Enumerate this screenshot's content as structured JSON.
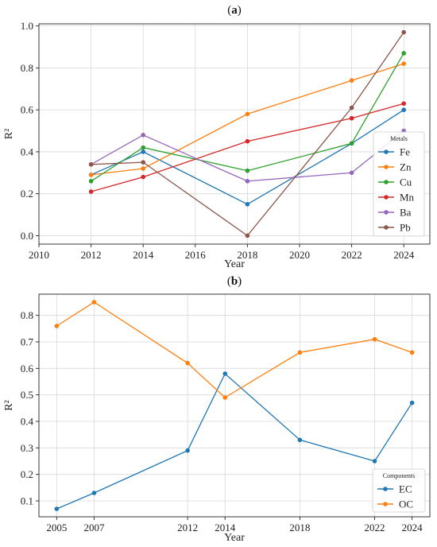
{
  "chart_data": [
    {
      "type": "line",
      "panel_label": "a",
      "xlabel": "Year",
      "ylabel": "R²",
      "xlim": [
        2010,
        2025
      ],
      "ylim": [
        -0.04,
        1.01
      ],
      "xticks": [
        2010,
        2012,
        2014,
        2016,
        2018,
        2020,
        2022,
        2024
      ],
      "yticks": [
        0.0,
        0.2,
        0.4,
        0.6,
        0.8,
        1.0
      ],
      "ytick_labels": [
        "0.0",
        "0.2",
        "0.4",
        "0.6",
        "0.8",
        "1.0"
      ],
      "grid": true,
      "legend": {
        "title": "Metals",
        "placement": "lower-right"
      },
      "x": [
        2012,
        2014,
        2018,
        2022,
        2024
      ],
      "series": [
        {
          "name": "Fe",
          "color": "#1f77b4",
          "values": [
            0.29,
            0.4,
            0.15,
            0.44,
            0.6
          ]
        },
        {
          "name": "Zn",
          "color": "#ff7f0e",
          "values": [
            0.29,
            0.32,
            0.58,
            0.74,
            0.82
          ]
        },
        {
          "name": "Cu",
          "color": "#2ca02c",
          "values": [
            0.26,
            0.42,
            0.31,
            0.44,
            0.87
          ]
        },
        {
          "name": "Mn",
          "color": "#d62728",
          "values": [
            0.21,
            0.28,
            0.45,
            0.56,
            0.63
          ]
        },
        {
          "name": "Ba",
          "color": "#9467bd",
          "values": [
            0.34,
            0.48,
            0.26,
            0.3,
            0.5
          ]
        },
        {
          "name": "Pb",
          "color": "#8c564b",
          "values": [
            0.34,
            0.35,
            0.0,
            0.61,
            0.97
          ]
        }
      ]
    },
    {
      "type": "line",
      "panel_label": "b",
      "xlabel": "Year",
      "ylabel": "R²",
      "xlim": [
        2004.05,
        2024.95
      ],
      "ylim": [
        0.04,
        0.88
      ],
      "xticks": [
        2005,
        2007,
        2012,
        2014,
        2018,
        2022,
        2024
      ],
      "yticks": [
        0.1,
        0.2,
        0.3,
        0.4,
        0.5,
        0.6,
        0.7,
        0.8
      ],
      "ytick_labels": [
        "0.1",
        "0.2",
        "0.3",
        "0.4",
        "0.5",
        "0.6",
        "0.7",
        "0.8"
      ],
      "grid": true,
      "legend": {
        "title": "Components",
        "placement": "lower-right"
      },
      "x": [
        2005,
        2007,
        2012,
        2014,
        2018,
        2022,
        2024
      ],
      "series": [
        {
          "name": "EC",
          "color": "#1f77b4",
          "values": [
            0.07,
            0.13,
            0.29,
            0.58,
            0.33,
            0.25,
            0.47
          ]
        },
        {
          "name": "OC",
          "color": "#ff7f0e",
          "values": [
            0.76,
            0.85,
            0.62,
            0.49,
            0.66,
            0.71,
            0.66
          ]
        }
      ]
    }
  ]
}
